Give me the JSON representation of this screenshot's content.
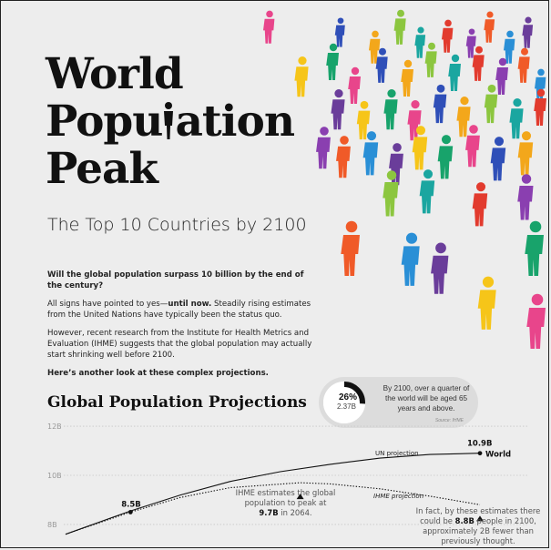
{
  "header": {
    "title_lines": [
      "World",
      "Popu",
      "ation",
      "Peak"
    ],
    "subtitle": "The Top 10 Countries by 2100"
  },
  "intro": {
    "question": "Will the global population surpass 10 billion by the end of the century?",
    "p1_start": "All signs have pointed to yes—",
    "p1_bold": "until now.",
    "p1_end": " Steadily rising estimates from the United Nations have typically been the status quo.",
    "p2": "However, recent research from the Institute for Health Metrics and Evaluation (IHME) suggests that the global population may actually start shrinking well before 2100.",
    "closing": "Here’s another look at these complex projections."
  },
  "section": {
    "title": "Global Population Projections"
  },
  "callout": {
    "percent": "26%",
    "value": "2.37B",
    "text": "By 2100, over a quarter of the world will be aged 65 years and above.",
    "source": "Source: IHME",
    "share": 0.26
  },
  "annotations": {
    "peak_line1": "IHME estimates the global",
    "peak_line2": "population to peak at",
    "peak_value": "9.7B",
    "peak_tail": " in 2064.",
    "end_line1": "In fact, by these estimates there",
    "end_line2_pre": "could be ",
    "end_value": "8.8B",
    "end_line2_post": " people in 2100,",
    "end_line3": "approximately 2B fewer than",
    "end_line4": "previously thought."
  },
  "chart_data": {
    "type": "line",
    "title": "Global Population Projections",
    "xlim": [
      2017,
      2100
    ],
    "ylim": [
      7.7,
      12.3
    ],
    "yticks": [
      "8B",
      "10B",
      "12B"
    ],
    "ytick_values": [
      8,
      10,
      12
    ],
    "grid": true,
    "series": [
      {
        "name": "UN projection",
        "style": "solid",
        "color": "#111111",
        "x": [
          2017,
          2030,
          2040,
          2050,
          2060,
          2070,
          2080,
          2090,
          2100
        ],
        "y": [
          7.6,
          8.55,
          9.2,
          9.75,
          10.15,
          10.45,
          10.7,
          10.85,
          10.9
        ]
      },
      {
        "name": "IHME projection",
        "style": "dotted",
        "color": "#111111",
        "x": [
          2017,
          2030,
          2040,
          2050,
          2064,
          2070,
          2080,
          2090,
          2100
        ],
        "y": [
          7.6,
          8.5,
          9.1,
          9.5,
          9.7,
          9.65,
          9.45,
          9.15,
          8.8
        ]
      }
    ],
    "labels": [
      {
        "text": "8.5B",
        "x": 2030,
        "y": 8.5
      },
      {
        "text": "10.9B",
        "x": 2100,
        "y": 10.9
      },
      {
        "text": "World",
        "x": 2100,
        "y": 10.9
      }
    ],
    "markers": [
      {
        "x": 2064,
        "y": 9.7
      },
      {
        "x": 2100,
        "y": 8.8
      }
    ]
  },
  "colors": {
    "background": "#ededed",
    "text": "#111111",
    "grid": "#c8c8c8"
  }
}
